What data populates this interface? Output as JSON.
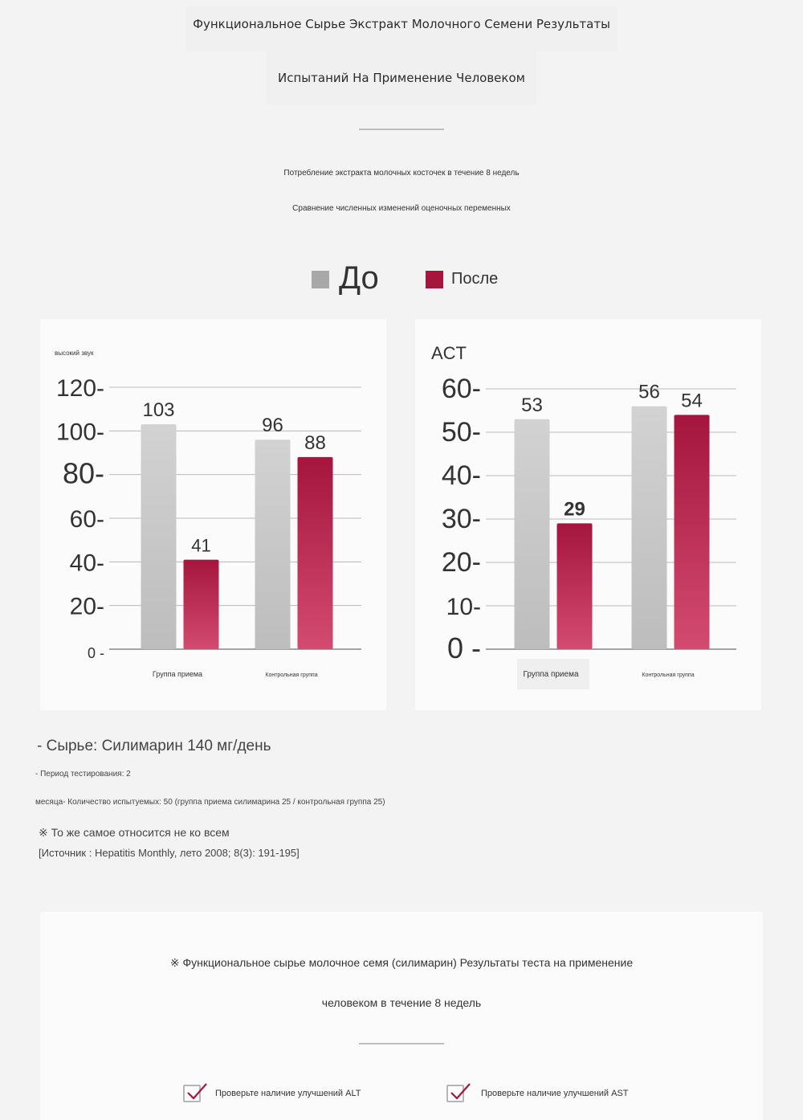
{
  "header": {
    "title_line1": "Функциональное Сырье Экстракт Молочного Семени Результаты",
    "title_line2": "Испытаний На Применение Человеком",
    "sub1": "Потребление экстракта молочных косточек в течение 8 недель",
    "sub2": "Сравнение численных изменений оценочных переменных"
  },
  "legend": {
    "before": "До",
    "after": "После"
  },
  "colors": {
    "before": "#c8c8c8",
    "after_top": "#a5153d",
    "after_bottom": "#d34b70"
  },
  "chart_data": [
    {
      "type": "bar",
      "title": "высокий звук",
      "categories": [
        "Группа приема",
        "Контрольная группа"
      ],
      "series": [
        {
          "name": "До",
          "values": [
            103,
            96
          ]
        },
        {
          "name": "После",
          "values": [
            41,
            88
          ]
        }
      ],
      "yticks": [
        "0",
        "20",
        "40",
        "60",
        "80",
        "100",
        "120"
      ],
      "ylim": [
        0,
        120
      ],
      "grid": true
    },
    {
      "type": "bar",
      "title": "ACT",
      "categories": [
        "Группа приема",
        "Контрольная группа"
      ],
      "series": [
        {
          "name": "До",
          "values": [
            53,
            56
          ]
        },
        {
          "name": "После",
          "values": [
            29,
            54
          ]
        }
      ],
      "yticks": [
        "0",
        "10",
        "20",
        "30",
        "40",
        "50",
        "60"
      ],
      "ylim": [
        0,
        60
      ],
      "grid": true
    }
  ],
  "notes": {
    "raw_material": "- Сырье: Силимарин 140 мг/день",
    "period": "- Период тестирования: 2",
    "subjects": "месяца- Количество испытуемых: 50 (группа приема силимарина 25 / контрольная группа 25)",
    "disclaimer": "※ То же самое относится не ко всем",
    "source": "[Источник : Hepatitis Monthly, лето 2008; 8(3): 191-195]"
  },
  "bottom": {
    "line1": "※ Функциональное сырье молочное семя (силимарин) Результаты теста на применение",
    "line2": "человеком в течение 8 недель",
    "check_alt": "Проверьте наличие улучшений ALT",
    "check_ast": "Проверьте наличие улучшений AST"
  }
}
